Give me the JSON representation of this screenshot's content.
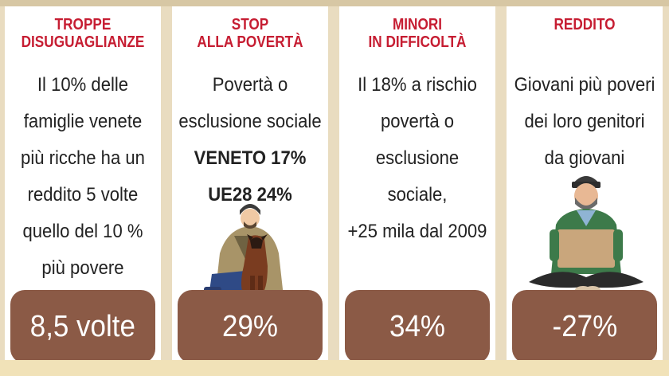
{
  "cards": [
    {
      "title": "TROPPE\nDISUGUAGLIANZE",
      "lines": [
        "Il 10% delle",
        "famiglie venete",
        "più ricche ha un",
        "reddito 5 volte",
        "quello del 10 %",
        "più povere"
      ],
      "value": "8,5 volte"
    },
    {
      "title": "STOP\nALLA POVERTÀ",
      "lines": [
        "Povertà o",
        "esclusione sociale",
        "VENETO 17%",
        "UE28 24%"
      ],
      "value": "29%"
    },
    {
      "title": "MINORI\nIN DIFFICOLTÀ",
      "lines": [
        "Il 18% a rischio",
        "povertà o",
        "esclusione",
        "sociale,",
        "+25 mila dal 2009"
      ],
      "value": "34%"
    },
    {
      "title": "REDDITO",
      "lines": [
        "Giovani più poveri",
        "dei loro genitori",
        "da giovani"
      ],
      "value": "-27%"
    }
  ],
  "illustrations": {
    "card2": "man-with-dog-illustration",
    "card4": "young-man-with-sign-illustration"
  },
  "colors": {
    "title_red": "#c61d32",
    "pill_brown": "#8b5a46",
    "background_beige": "#e9dcc0"
  }
}
